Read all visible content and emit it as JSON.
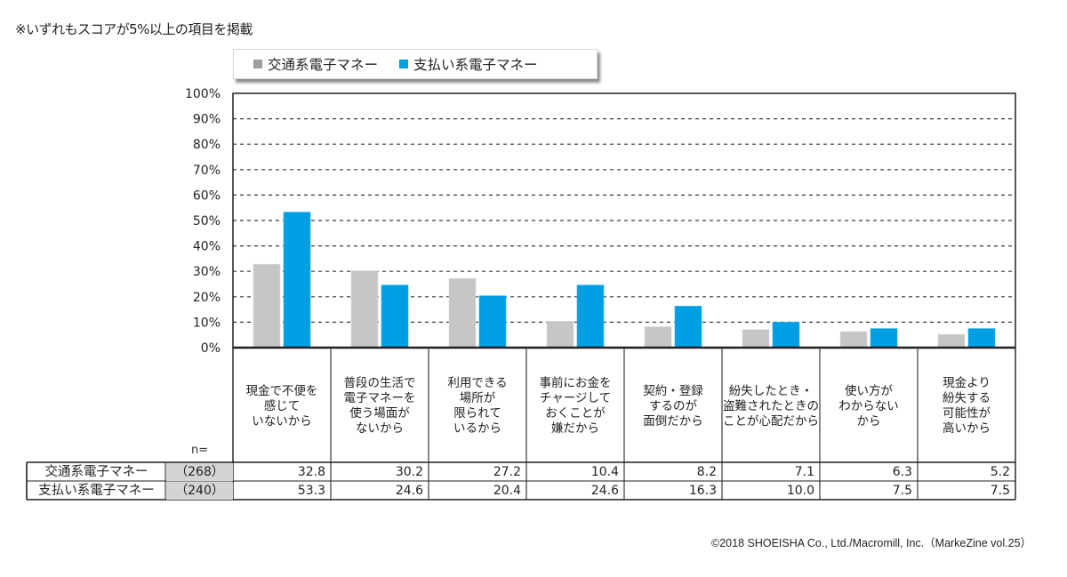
{
  "note": "※いずれもスコアが5%以上の項目を掲載",
  "copyright": "©2018 SHOEISHA Co., Ltd./Macromill, Inc.（MarkeZine vol.25）",
  "n_label": "n=",
  "chart_data": {
    "type": "bar",
    "title": "",
    "xlabel": "",
    "ylabel": "",
    "ylim": [
      0,
      100
    ],
    "y_ticks": [
      "0%",
      "10%",
      "20%",
      "30%",
      "40%",
      "50%",
      "60%",
      "70%",
      "80%",
      "90%",
      "100%"
    ],
    "grid": true,
    "legend_position": "top",
    "categories": [
      "現金で不便を\n感じて\nいないから",
      "普段の生活で\n電子マネーを\n使う場面が\nないから",
      "利用できる\n場所が\n限られて\nいるから",
      "事前にお金を\nチャージして\nおくことが\n嫌だから",
      "契約・登録\nするのが\n面倒だから",
      "紛失したとき・\n盗難されたときの\nことが心配だから",
      "使い方が\nわからない\nから",
      "現金より\n紛失する\n可能性が\n高いから"
    ],
    "series": [
      {
        "name": "交通系電子マネー",
        "n": "（268）",
        "color": "#c6c6c7",
        "values": [
          32.8,
          30.2,
          27.2,
          10.4,
          8.2,
          7.1,
          6.3,
          5.2
        ],
        "labels": [
          "32.8",
          "30.2",
          "27.2",
          "10.4",
          "8.2",
          "7.1",
          "6.3",
          "5.2"
        ]
      },
      {
        "name": "支払い系電子マネー",
        "n": "（240）",
        "color": "#009ee3",
        "values": [
          53.3,
          24.6,
          20.4,
          24.6,
          16.3,
          10.0,
          7.5,
          7.5
        ],
        "labels": [
          "53.3",
          "24.6",
          "20.4",
          "24.6",
          "16.3",
          "10.0",
          "7.5",
          "7.5"
        ]
      }
    ]
  }
}
